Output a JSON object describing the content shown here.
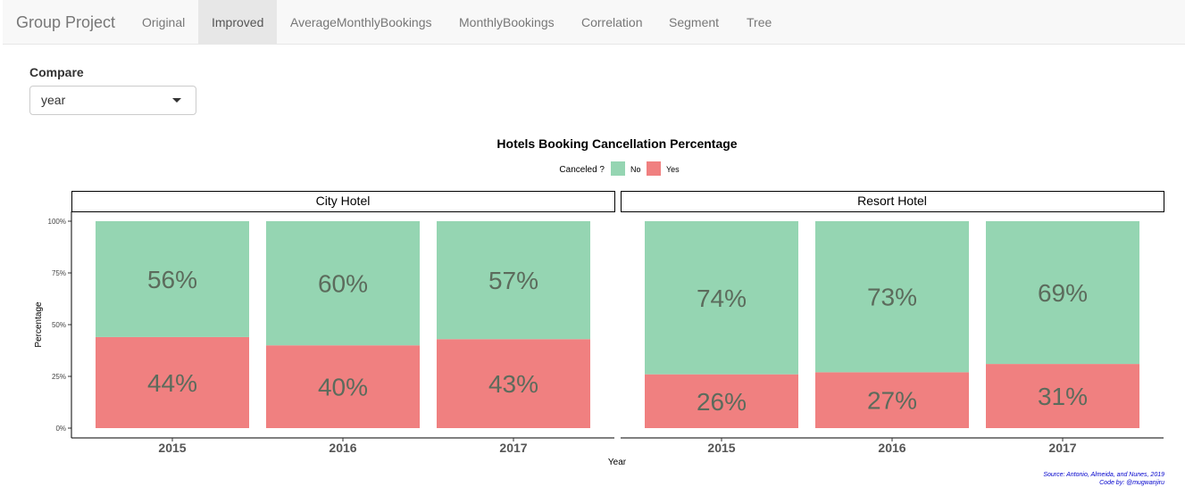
{
  "app": {
    "brand": "Group Project",
    "tabs": [
      "Original",
      "Improved",
      "AverageMonthlyBookings",
      "MonthlyBookings",
      "Correlation",
      "Segment",
      "Tree"
    ],
    "active_tab": "Improved"
  },
  "controls": {
    "compare_label": "Compare",
    "compare_value": "year"
  },
  "colors": {
    "no": "#95d5b2",
    "yes": "#f08080",
    "bar_label": "#5c6b5c",
    "caption": "#0000cc"
  },
  "chart_data": {
    "type": "bar",
    "stacked": true,
    "title": "Hotels Booking Cancellation Percentage",
    "legend_title": "Canceled ?",
    "legend_position": "top",
    "xlabel": "Year",
    "ylabel": "Percentage",
    "ylim": [
      0,
      100
    ],
    "yticks": [
      "0%",
      "25%",
      "50%",
      "75%",
      "100%"
    ],
    "categories": [
      "2015",
      "2016",
      "2017"
    ],
    "facets": [
      {
        "name": "City Hotel",
        "series": [
          {
            "name": "No",
            "values": [
              56,
              60,
              57
            ]
          },
          {
            "name": "Yes",
            "values": [
              44,
              40,
              43
            ]
          }
        ]
      },
      {
        "name": "Resort Hotel",
        "series": [
          {
            "name": "No",
            "values": [
              74,
              73,
              69
            ]
          },
          {
            "name": "Yes",
            "values": [
              26,
              27,
              31
            ]
          }
        ]
      }
    ],
    "caption": [
      "Source: Antonio, Almeida, and Nunes, 2019",
      "Code by: @mugwanjiru"
    ]
  }
}
